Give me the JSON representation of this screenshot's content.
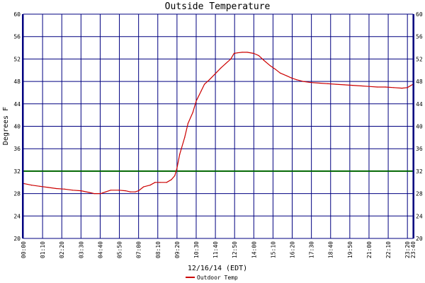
{
  "chart_data": {
    "type": "line",
    "title": "Outside Temperature",
    "xlabel": "12/16/14 (EDT)",
    "ylabel": "Degrees F",
    "ylim": [
      20,
      60
    ],
    "yticks": [
      20,
      24,
      28,
      32,
      36,
      40,
      44,
      48,
      52,
      56,
      60
    ],
    "xlim_hours": [
      0,
      23.67
    ],
    "xticks": [
      {
        "label": "00:00",
        "h": 0
      },
      {
        "label": "01:10",
        "h": 1.1667
      },
      {
        "label": "02:20",
        "h": 2.3333
      },
      {
        "label": "03:30",
        "h": 3.5
      },
      {
        "label": "04:40",
        "h": 4.6667
      },
      {
        "label": "05:50",
        "h": 5.8333
      },
      {
        "label": "07:00",
        "h": 7.0
      },
      {
        "label": "08:10",
        "h": 8.1667
      },
      {
        "label": "09:20",
        "h": 9.3333
      },
      {
        "label": "10:30",
        "h": 10.5
      },
      {
        "label": "11:40",
        "h": 11.6667
      },
      {
        "label": "12:50",
        "h": 12.8333
      },
      {
        "label": "14:00",
        "h": 14.0
      },
      {
        "label": "15:10",
        "h": 15.1667
      },
      {
        "label": "16:20",
        "h": 16.3333
      },
      {
        "label": "17:30",
        "h": 17.5
      },
      {
        "label": "18:40",
        "h": 18.6667
      },
      {
        "label": "19:50",
        "h": 19.8333
      },
      {
        "label": "21:00",
        "h": 21.0
      },
      {
        "label": "22:10",
        "h": 22.1667
      },
      {
        "label": "23:20",
        "h": 23.3333
      },
      {
        "label": "23:40",
        "h": 23.6667
      }
    ],
    "grid": true,
    "reference_line": {
      "y": 32,
      "color": "#006600"
    },
    "series": [
      {
        "name": "Outdoor Temp",
        "color": "#cc0000",
        "x": [
          0,
          0.5,
          1.0,
          1.5,
          2.0,
          2.5,
          3.0,
          3.5,
          4.0,
          4.3,
          4.7,
          5.0,
          5.3,
          5.8,
          6.2,
          6.5,
          6.8,
          7.0,
          7.3,
          7.7,
          8.0,
          8.3,
          8.7,
          9.0,
          9.2,
          9.33,
          9.5,
          9.8,
          10.0,
          10.3,
          10.5,
          10.8,
          11.0,
          11.3,
          11.7,
          12.0,
          12.3,
          12.6,
          12.8,
          13.0,
          13.3,
          13.6,
          14.0,
          14.3,
          14.6,
          15.0,
          15.3,
          15.6,
          16.0,
          16.3,
          16.6,
          17.0,
          17.5,
          18.0,
          18.5,
          19.0,
          19.5,
          20.0,
          20.5,
          21.0,
          21.5,
          22.0,
          22.5,
          23.0,
          23.33,
          23.67
        ],
        "y": [
          29.8,
          29.5,
          29.3,
          29.1,
          28.9,
          28.8,
          28.6,
          28.5,
          28.2,
          28.0,
          28.0,
          28.3,
          28.6,
          28.6,
          28.5,
          28.3,
          28.3,
          28.5,
          29.2,
          29.5,
          30.0,
          30.0,
          30.0,
          30.5,
          31.2,
          32.5,
          35.0,
          38.0,
          40.5,
          42.5,
          44.5,
          46.3,
          47.5,
          48.3,
          49.5,
          50.4,
          51.2,
          52.0,
          53.0,
          53.1,
          53.2,
          53.2,
          53.0,
          52.6,
          51.8,
          50.8,
          50.2,
          49.5,
          49.0,
          48.6,
          48.3,
          48.0,
          47.8,
          47.7,
          47.6,
          47.5,
          47.4,
          47.3,
          47.2,
          47.1,
          47.0,
          47.0,
          46.9,
          46.8,
          46.9,
          47.5
        ]
      }
    ]
  }
}
